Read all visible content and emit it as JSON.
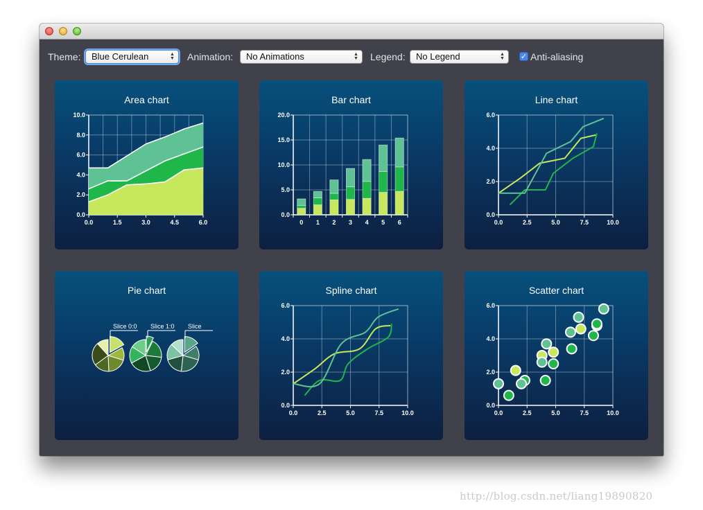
{
  "toolbar": {
    "theme_label": "Theme:",
    "theme_value": "Blue Cerulean",
    "animation_label": "Animation:",
    "animation_value": "No Animations",
    "legend_label": "Legend:",
    "legend_value": "No Legend",
    "antialias_label": "Anti-aliasing",
    "antialias_checked": true
  },
  "colors": {
    "light_green": "#c7e85c",
    "mid_green": "#1fb64a",
    "teal_green": "#5fc295",
    "panel_top": "#07507c",
    "panel_bottom": "#0d1f40",
    "window_bg": "#40414a",
    "focus_ring": "#6fa8f3",
    "pie_set_1": [
      "#c9e06a",
      "#9eb83d",
      "#6f8a2a",
      "#4b6a1f",
      "#3a4a1a",
      "#e7f0a8"
    ],
    "pie_set_2": [
      "#2a9e52",
      "#1c7a3b",
      "#145c2d",
      "#0f4a24",
      "#34b55d",
      "#6acf86"
    ],
    "pie_set_3": [
      "#5aa48a",
      "#3f7f69",
      "#2d6352",
      "#22503f",
      "#7cc3a6",
      "#b3e0ce"
    ]
  },
  "icons": {
    "close": "close-traffic-light-icon",
    "minimize": "minimize-traffic-light-icon",
    "maximize": "maximize-traffic-light-icon",
    "combo_arrows": "up-down-arrows-icon",
    "check": "checkmark-icon"
  },
  "watermark": "http://blog.csdn.net/liang19890820",
  "chart_data": [
    {
      "title": "Area chart",
      "type": "area",
      "x": [
        0,
        1,
        2,
        3,
        4,
        5,
        6
      ],
      "series": [
        {
          "values": [
            1.3,
            2.0,
            3.0,
            3.1,
            3.3,
            4.5,
            4.7
          ]
        },
        {
          "values": [
            2.6,
            3.4,
            3.4,
            4.4,
            5.4,
            6.1,
            6.8
          ]
        },
        {
          "values": [
            4.7,
            4.7,
            5.9,
            7.1,
            7.8,
            8.6,
            9.2
          ]
        }
      ],
      "xlim": [
        0,
        6
      ],
      "ylim": [
        0,
        10
      ],
      "xticks": [
        "0.0",
        "1.5",
        "3.0",
        "4.5",
        "6.0"
      ],
      "yticks": [
        "0.0",
        "2.0",
        "4.0",
        "6.0",
        "8.0",
        "10.0"
      ],
      "grid": true
    },
    {
      "title": "Bar chart",
      "type": "bar",
      "stacked": true,
      "categories": [
        "0",
        "1",
        "2",
        "3",
        "4",
        "5",
        "6"
      ],
      "series": [
        {
          "values": [
            1.3,
            2.0,
            3.0,
            3.1,
            3.3,
            4.5,
            4.7
          ]
        },
        {
          "values": [
            0.6,
            1.4,
            1.3,
            2.5,
            3.4,
            4.2,
            4.9
          ]
        },
        {
          "values": [
            1.3,
            1.3,
            2.7,
            3.7,
            4.4,
            5.3,
            5.8
          ]
        }
      ],
      "ylim": [
        0,
        20
      ],
      "yticks": [
        "0.0",
        "5.0",
        "10.0",
        "15.0",
        "20.0"
      ],
      "grid": true
    },
    {
      "title": "Line chart",
      "type": "line",
      "series": [
        {
          "points": [
            [
              0,
              1.3
            ],
            [
              1.9,
              2.2
            ],
            [
              3.6,
              3.1
            ],
            [
              5.8,
              3.4
            ],
            [
              7.2,
              4.6
            ],
            [
              8.5,
              4.8
            ]
          ]
        },
        {
          "points": [
            [
              1,
              0.6
            ],
            [
              2.3,
              1.5
            ],
            [
              4.1,
              1.5
            ],
            [
              4.8,
              2.5
            ],
            [
              6.5,
              3.4
            ],
            [
              8.3,
              4.1
            ],
            [
              8.6,
              4.9
            ]
          ]
        },
        {
          "points": [
            [
              0,
              1.3
            ],
            [
              2.3,
              1.3
            ],
            [
              4.2,
              3.7
            ],
            [
              6.3,
              4.4
            ],
            [
              7.4,
              5.3
            ],
            [
              9.2,
              5.8
            ]
          ]
        }
      ],
      "xlim": [
        0,
        10
      ],
      "ylim": [
        0,
        6
      ],
      "xticks": [
        "0.0",
        "2.5",
        "5.0",
        "7.5",
        "10.0"
      ],
      "yticks": [
        "0.0",
        "2.0",
        "4.0",
        "6.0"
      ],
      "grid": true
    },
    {
      "title": "Pie chart",
      "type": "pie",
      "pies": [
        {
          "label": "Slice 0:0",
          "values": [
            1.3,
            1.0,
            1.5,
            1.2,
            1.8,
            0.9
          ]
        },
        {
          "label": "Slice 1:0",
          "values": [
            0.6,
            1.6,
            1.5,
            1.8,
            1.4,
            1.3
          ]
        },
        {
          "label": "Slice",
          "values": [
            1.3,
            1.2,
            1.9,
            1.6,
            1.4,
            1.1
          ]
        }
      ]
    },
    {
      "title": "Spline chart",
      "type": "line",
      "smooth": true,
      "series": [
        {
          "points": [
            [
              0,
              1.3
            ],
            [
              1.9,
              2.2
            ],
            [
              3.6,
              3.1
            ],
            [
              5.8,
              3.4
            ],
            [
              7.2,
              4.6
            ],
            [
              8.5,
              4.8
            ]
          ]
        },
        {
          "points": [
            [
              1,
              0.6
            ],
            [
              2.3,
              1.5
            ],
            [
              4.1,
              1.5
            ],
            [
              4.8,
              2.5
            ],
            [
              6.5,
              3.4
            ],
            [
              8.3,
              4.1
            ],
            [
              8.6,
              4.9
            ]
          ]
        },
        {
          "points": [
            [
              0,
              1.3
            ],
            [
              2.3,
              1.3
            ],
            [
              4.2,
              3.7
            ],
            [
              6.3,
              4.4
            ],
            [
              7.4,
              5.3
            ],
            [
              9.2,
              5.8
            ]
          ]
        }
      ],
      "xlim": [
        0,
        10
      ],
      "ylim": [
        0,
        6
      ],
      "xticks": [
        "0.0",
        "2.5",
        "5.0",
        "7.5",
        "10.0"
      ],
      "yticks": [
        "0.0",
        "2.0",
        "4.0",
        "6.0"
      ],
      "grid": true
    },
    {
      "title": "Scatter chart",
      "type": "scatter",
      "series": [
        {
          "points": [
            [
              1.5,
              2.1
            ],
            [
              3.8,
              3.0
            ],
            [
              4.8,
              3.2
            ],
            [
              7.2,
              4.6
            ],
            [
              8.6,
              4.8
            ]
          ]
        },
        {
          "points": [
            [
              0.9,
              0.6
            ],
            [
              2.3,
              1.5
            ],
            [
              4.1,
              1.5
            ],
            [
              4.8,
              2.5
            ],
            [
              6.4,
              3.4
            ],
            [
              8.3,
              4.2
            ],
            [
              8.6,
              4.9
            ]
          ]
        },
        {
          "points": [
            [
              0,
              1.3
            ],
            [
              2.0,
              1.3
            ],
            [
              3.8,
              2.6
            ],
            [
              4.2,
              3.7
            ],
            [
              6.3,
              4.4
            ],
            [
              7.0,
              5.3
            ],
            [
              9.2,
              5.8
            ]
          ]
        }
      ],
      "xlim": [
        0,
        10
      ],
      "ylim": [
        0,
        6
      ],
      "xticks": [
        "0.0",
        "2.5",
        "5.0",
        "7.5",
        "10.0"
      ],
      "yticks": [
        "0.0",
        "2.0",
        "4.0",
        "6.0"
      ],
      "grid": true
    }
  ]
}
